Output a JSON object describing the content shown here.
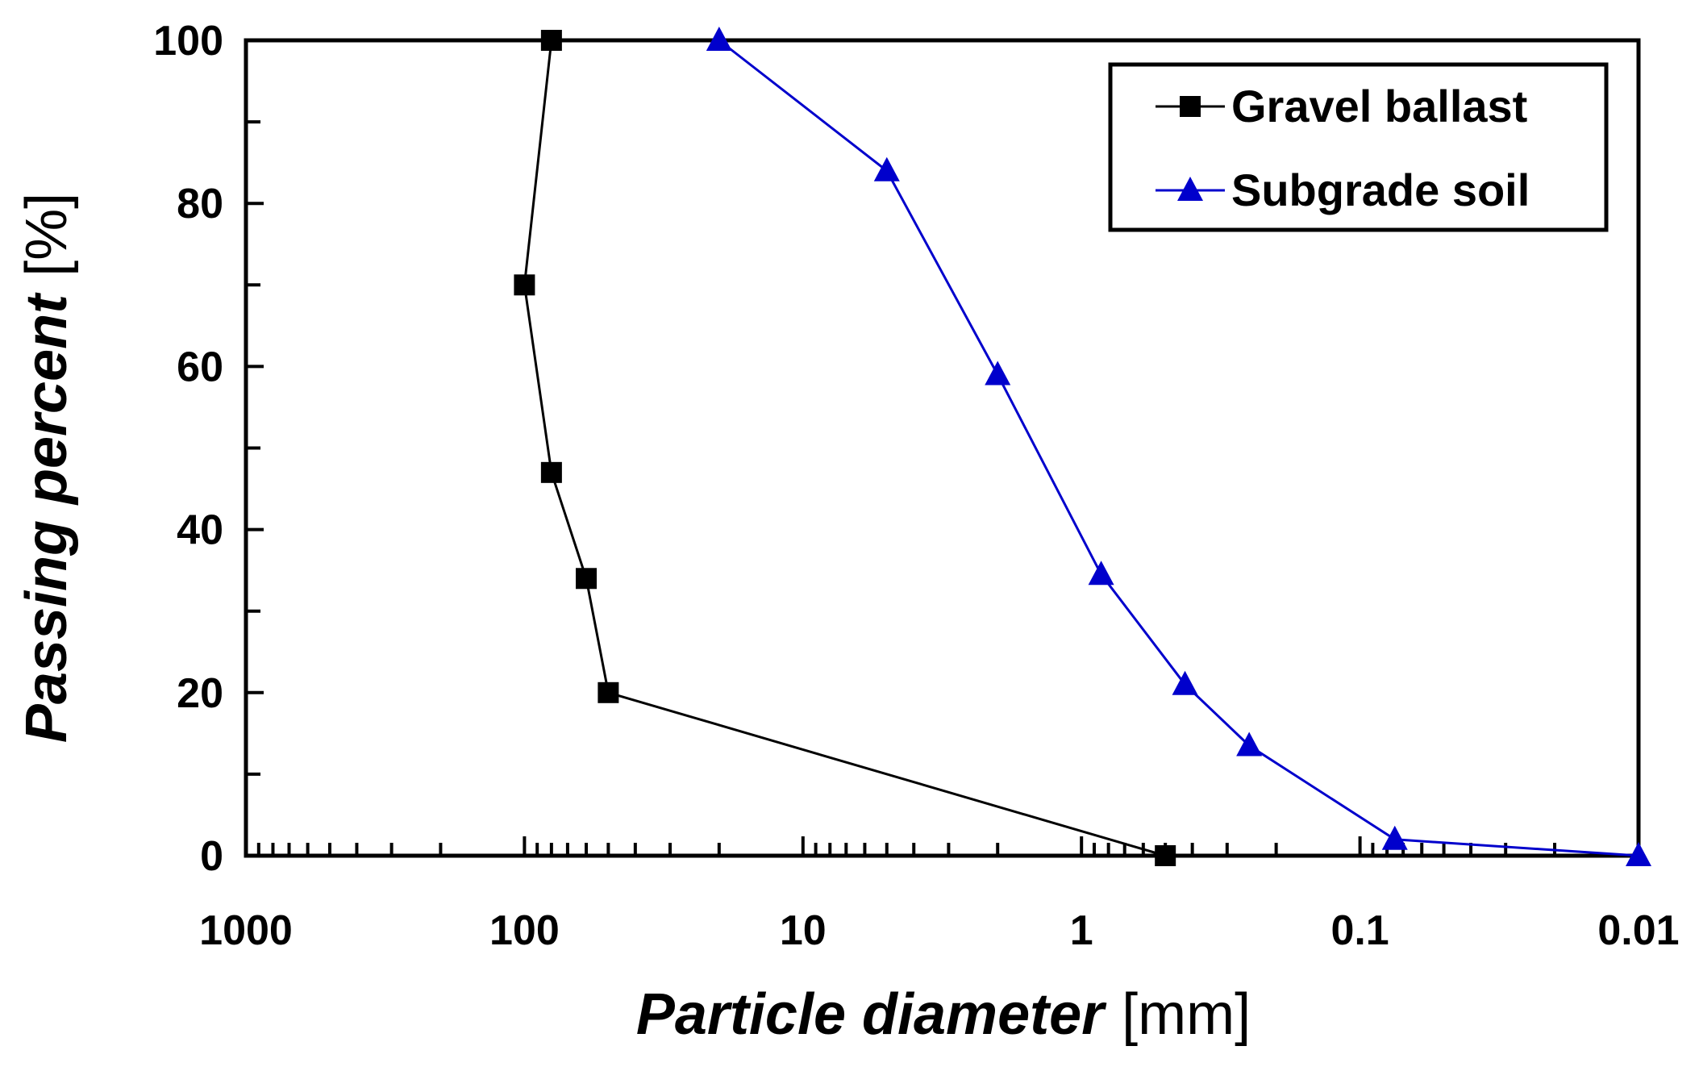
{
  "chart_data": {
    "type": "line",
    "xlabel_main": "Particle diameter",
    "xlabel_unit": "[mm]",
    "ylabel_main": "Passing percent",
    "ylabel_unit": "[%]",
    "x_scale": "log",
    "x_reversed": true,
    "xlim": [
      1000,
      0.01
    ],
    "ylim": [
      0,
      100
    ],
    "x_ticks": [
      {
        "value": 1000,
        "label": "1000"
      },
      {
        "value": 100,
        "label": "100"
      },
      {
        "value": 10,
        "label": "10"
      },
      {
        "value": 1,
        "label": "1"
      },
      {
        "value": 0.1,
        "label": "0.1"
      },
      {
        "value": 0.01,
        "label": "0.01"
      }
    ],
    "y_ticks": [
      {
        "value": 0,
        "label": "0"
      },
      {
        "value": 20,
        "label": "20"
      },
      {
        "value": 40,
        "label": "40"
      },
      {
        "value": 60,
        "label": "60"
      },
      {
        "value": 80,
        "label": "80"
      },
      {
        "value": 100,
        "label": "100"
      }
    ],
    "grid": false,
    "legend_position": "top-right",
    "series": [
      {
        "name": "Gravel ballast",
        "color": "#000000",
        "marker": "square",
        "points": [
          {
            "x": 80,
            "y": 100
          },
          {
            "x": 100,
            "y": 70
          },
          {
            "x": 80,
            "y": 47
          },
          {
            "x": 60,
            "y": 34
          },
          {
            "x": 50,
            "y": 20
          },
          {
            "x": 0.5,
            "y": 0
          }
        ]
      },
      {
        "name": "Subgrade soil",
        "color": "#0000CC",
        "marker": "triangle",
        "points": [
          {
            "x": 20,
            "y": 100
          },
          {
            "x": 5,
            "y": 84
          },
          {
            "x": 2,
            "y": 59
          },
          {
            "x": 0.85,
            "y": 34.5
          },
          {
            "x": 0.425,
            "y": 21
          },
          {
            "x": 0.25,
            "y": 13.5
          },
          {
            "x": 0.075,
            "y": 2
          },
          {
            "x": 0.01,
            "y": 0
          }
        ]
      }
    ]
  }
}
